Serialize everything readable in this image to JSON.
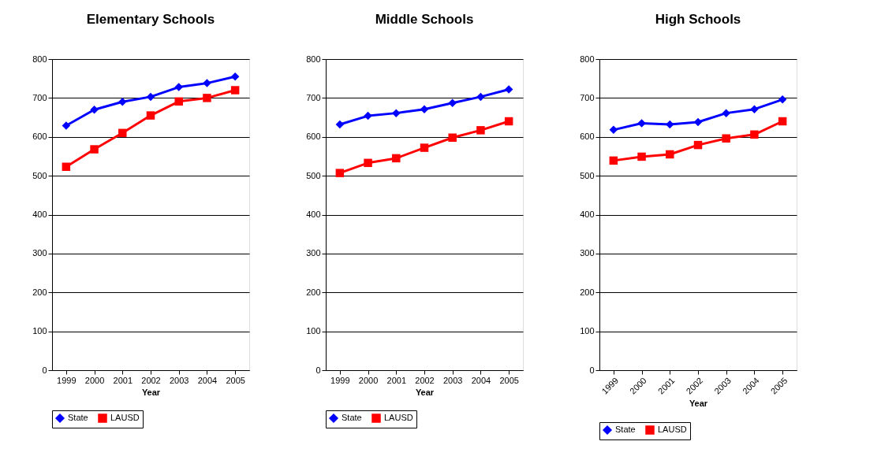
{
  "chart_data": [
    {
      "type": "line",
      "title": "Elementary Schools",
      "xlabel": "Year",
      "categories": [
        "1999",
        "2000",
        "2001",
        "2002",
        "2003",
        "2004",
        "2005"
      ],
      "ylim": [
        0,
        800
      ],
      "yticks": [
        0,
        100,
        200,
        300,
        400,
        500,
        600,
        700,
        800
      ],
      "grid": "y",
      "legend": "bottom",
      "line_style": "solid",
      "series": [
        {
          "name": "State",
          "color": "#0000ff",
          "marker": "diamond",
          "values": [
            629,
            670,
            690,
            703,
            728,
            738,
            755
          ]
        },
        {
          "name": "LAUSD",
          "color": "#ff0000",
          "marker": "square",
          "values": [
            523,
            568,
            610,
            655,
            691,
            700,
            720
          ]
        }
      ]
    },
    {
      "type": "line",
      "title": "Middle Schools",
      "xlabel": "Year",
      "categories": [
        "1999",
        "2000",
        "2001",
        "2002",
        "2003",
        "2004",
        "2005"
      ],
      "ylim": [
        0,
        800
      ],
      "yticks": [
        0,
        100,
        200,
        300,
        400,
        500,
        600,
        700,
        800
      ],
      "grid": "y",
      "legend": "bottom",
      "line_style": "solid",
      "series": [
        {
          "name": "State",
          "color": "#0000ff",
          "marker": "diamond",
          "values": [
            632,
            654,
            661,
            671,
            687,
            703,
            722
          ]
        },
        {
          "name": "LAUSD",
          "color": "#ff0000",
          "marker": "square",
          "values": [
            507,
            533,
            545,
            572,
            598,
            617,
            640
          ]
        }
      ]
    },
    {
      "type": "line",
      "title": "High Schools",
      "xlabel": "Year",
      "categories": [
        "1999",
        "2000",
        "2001",
        "2002",
        "2003",
        "2004",
        "2005"
      ],
      "ylim": [
        0,
        800
      ],
      "yticks": [
        0,
        100,
        200,
        300,
        400,
        500,
        600,
        700,
        800
      ],
      "grid": "y",
      "legend": "bottom",
      "line_style": "solid",
      "series": [
        {
          "name": "State",
          "color": "#0000ff",
          "marker": "diamond",
          "values": [
            618,
            635,
            632,
            638,
            661,
            671,
            696
          ]
        },
        {
          "name": "LAUSD",
          "color": "#ff0000",
          "marker": "square",
          "values": [
            539,
            549,
            555,
            579,
            596,
            606,
            640
          ]
        }
      ]
    }
  ]
}
